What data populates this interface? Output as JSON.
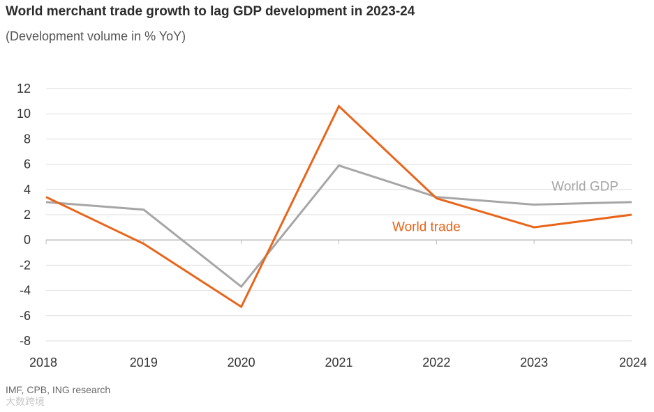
{
  "source": "IMF, CPB, ING research",
  "watermark": "大数跨境",
  "colors": {
    "world_trade": "#E8651A",
    "world_gdp": "#A6A6A6",
    "grid": "#DDDDDD",
    "zero_line": "#BBBBBB"
  },
  "chart_data": {
    "type": "line",
    "title": "World merchant trade growth to lag GDP development in 2023-24",
    "subtitle": "(Development volume in % YoY)",
    "xlabel": "",
    "ylabel": "",
    "x": [
      "2018",
      "2019",
      "2020",
      "2021",
      "2022",
      "2023",
      "2024"
    ],
    "ylim": [
      -8,
      12
    ],
    "yticks": [
      "12",
      "10",
      "8",
      "6",
      "4",
      "2",
      "0",
      "-2",
      "-4",
      "-6",
      "-8"
    ],
    "grid": true,
    "series": [
      {
        "name": "World GDP",
        "values": [
          3.0,
          2.4,
          -3.7,
          5.9,
          3.4,
          2.8,
          3.0
        ]
      },
      {
        "name": "World trade",
        "values": [
          3.4,
          -0.3,
          -5.3,
          10.6,
          3.3,
          1.0,
          2.0
        ]
      }
    ]
  }
}
